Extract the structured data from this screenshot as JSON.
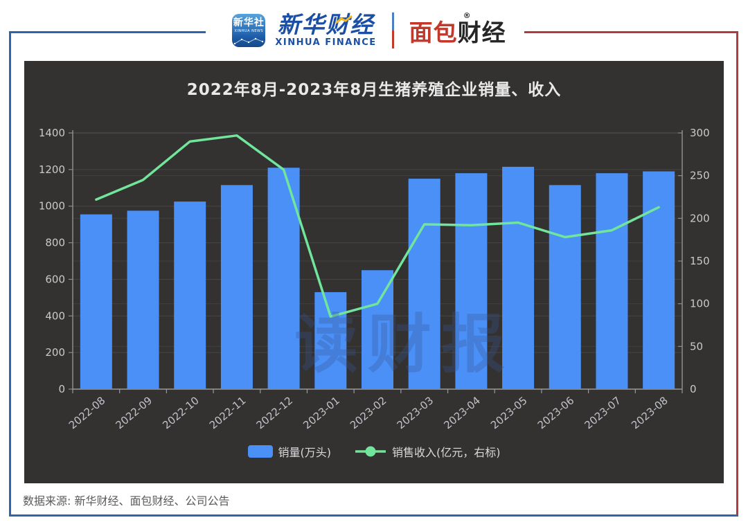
{
  "header": {
    "app_icon": {
      "line1": "新华社",
      "line2": "XINHUA NEWS"
    },
    "xinhua_finance": {
      "cn": "新华财经",
      "en": "XINHUA FINANCE"
    },
    "mianbao": {
      "part1": "面包",
      "part2": "财经",
      "reg": "®"
    }
  },
  "chart": {
    "title": "2022年8月-2023年8月生猪养殖企业销量、收入",
    "watermark": "读财报"
  },
  "chart_data": {
    "type": "bar",
    "title": "2022年8月-2023年8月生猪养殖企业销量、收入",
    "categories": [
      "2022-08",
      "2022-09",
      "2022-10",
      "2022-11",
      "2022-12",
      "2023-01",
      "2023-02",
      "2023-03",
      "2023-04",
      "2023-05",
      "2023-06",
      "2023-07",
      "2023-08"
    ],
    "series": [
      {
        "name": "销量(万头)",
        "type": "bar",
        "axis": "left",
        "color": "#4a90f7",
        "values": [
          955,
          975,
          1025,
          1115,
          1210,
          530,
          650,
          1150,
          1180,
          1215,
          1115,
          1180,
          1190
        ]
      },
      {
        "name": "销售收入(亿元，右标)",
        "type": "line",
        "axis": "right",
        "color": "#70e59b",
        "values": [
          222,
          245,
          290,
          297,
          257,
          85,
          100,
          193,
          192,
          195,
          178,
          186,
          213
        ]
      }
    ],
    "left_axis": {
      "min": 0,
      "max": 1400,
      "tick_values": [
        0,
        200,
        400,
        600,
        800,
        1000,
        1200,
        1400
      ],
      "tick_labels": [
        "0",
        "200",
        "400",
        "600",
        "800",
        "1000",
        "1200",
        "1400"
      ]
    },
    "right_axis": {
      "min": 0,
      "max": 300,
      "tick_values": [
        0,
        50,
        100,
        150,
        200,
        250,
        300
      ],
      "tick_labels": [
        "0",
        "50",
        "100",
        "150",
        "200",
        "250",
        "300"
      ]
    },
    "grid": true,
    "legend_position": "bottom"
  },
  "footer": {
    "source": "数据来源: 新华财经、面包财经、公司公告"
  }
}
